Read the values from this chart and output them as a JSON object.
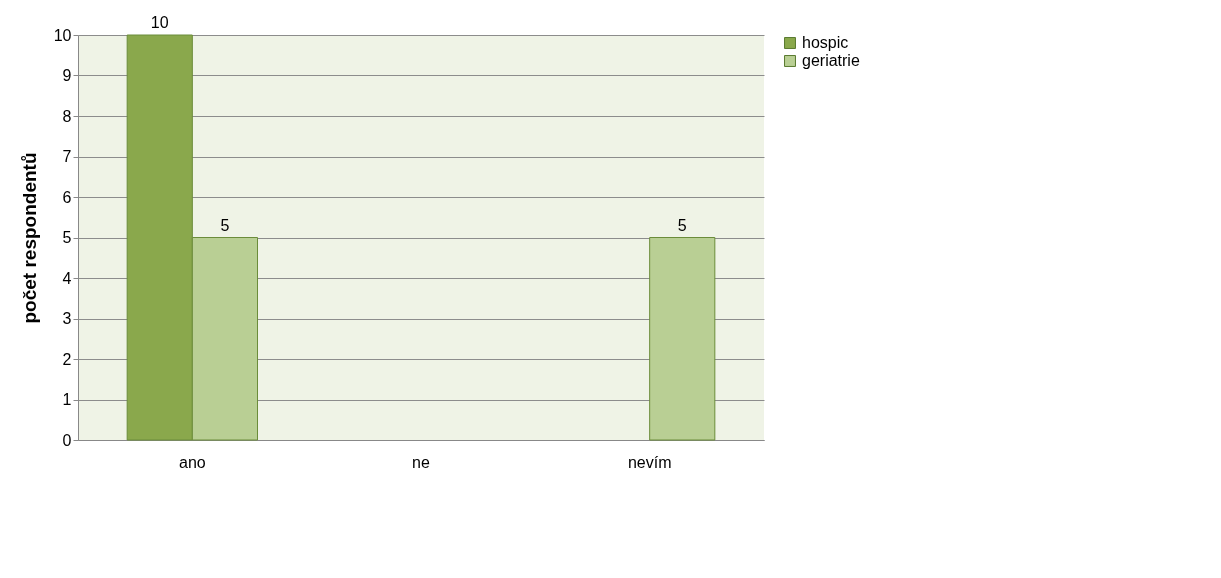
{
  "chart_data": {
    "type": "bar",
    "ylabel": "počet respondentů",
    "categories": [
      "ano",
      "ne",
      "nevím"
    ],
    "series": [
      {
        "name": "hospic",
        "color": "#8aa84c",
        "values": [
          10,
          0,
          0
        ],
        "value_labels": [
          "10",
          null,
          null
        ]
      },
      {
        "name": "geriatrie",
        "color": "#b9cf94",
        "values": [
          5,
          0,
          5
        ],
        "value_labels": [
          "5",
          null,
          "5"
        ]
      }
    ],
    "ylim": [
      0,
      10
    ],
    "yticks": [
      0,
      1,
      2,
      3,
      4,
      5,
      6,
      7,
      8,
      9,
      10
    ],
    "grid": "y",
    "legend": "right"
  }
}
